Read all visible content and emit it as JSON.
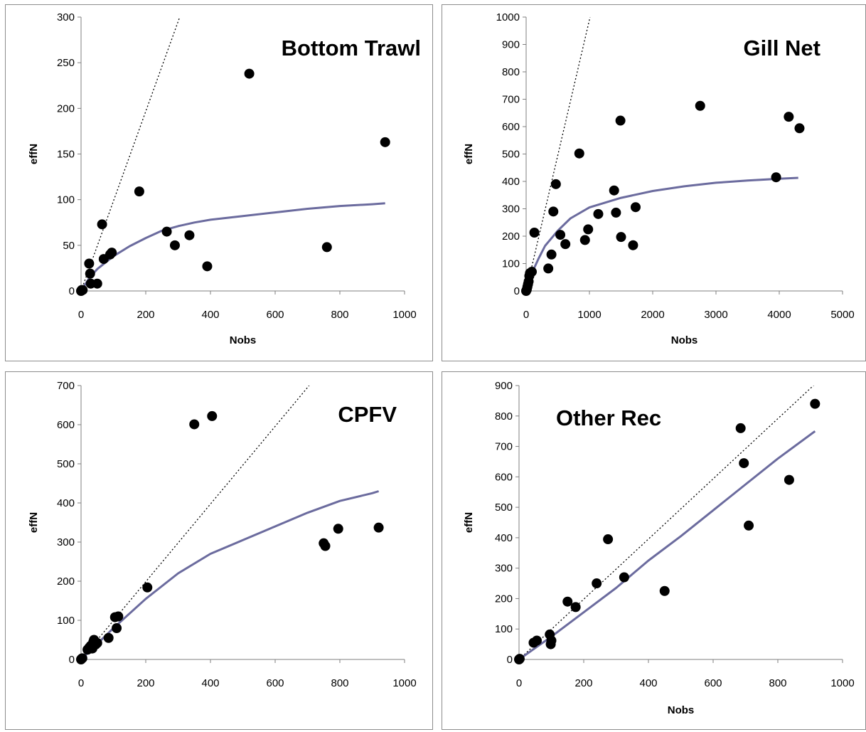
{
  "chart_data": [
    {
      "type": "scatter",
      "title": "Bottom Trawl",
      "xlabel": "Nobs",
      "ylabel": "effN",
      "xlim": [
        0,
        1000
      ],
      "ylim": [
        0,
        300
      ],
      "xticks": [
        0,
        200,
        400,
        600,
        800,
        1000
      ],
      "yticks": [
        0,
        50,
        100,
        150,
        200,
        250,
        300
      ],
      "grid": false,
      "points": [
        [
          0,
          0
        ],
        [
          2,
          1
        ],
        [
          5,
          1
        ],
        [
          25,
          30
        ],
        [
          28,
          19
        ],
        [
          30,
          8
        ],
        [
          50,
          8
        ],
        [
          65,
          73
        ],
        [
          70,
          35
        ],
        [
          90,
          40
        ],
        [
          95,
          42
        ],
        [
          180,
          109
        ],
        [
          265,
          65
        ],
        [
          290,
          50
        ],
        [
          335,
          61
        ],
        [
          390,
          27
        ],
        [
          520,
          238
        ],
        [
          760,
          48
        ],
        [
          940,
          163
        ]
      ],
      "fit_line": [
        [
          0,
          0
        ],
        [
          25,
          14
        ],
        [
          50,
          24
        ],
        [
          100,
          38
        ],
        [
          150,
          49
        ],
        [
          200,
          58
        ],
        [
          250,
          66
        ],
        [
          300,
          71
        ],
        [
          350,
          75
        ],
        [
          400,
          78
        ],
        [
          500,
          82
        ],
        [
          600,
          86
        ],
        [
          700,
          90
        ],
        [
          800,
          93
        ],
        [
          900,
          95
        ],
        [
          940,
          96
        ]
      ],
      "ref_line": [
        [
          0,
          0
        ],
        [
          305,
          300
        ]
      ],
      "colors": {
        "points": "#000000",
        "fit_line": "#6b6b9e",
        "ref_line": "#000000"
      }
    },
    {
      "type": "scatter",
      "title": "Gill Net",
      "xlabel": "Nobs",
      "ylabel": "effN",
      "xlim": [
        0,
        5000
      ],
      "ylim": [
        0,
        1000
      ],
      "xticks": [
        0,
        1000,
        2000,
        3000,
        4000,
        5000
      ],
      "yticks": [
        0,
        100,
        200,
        300,
        400,
        500,
        600,
        700,
        800,
        900,
        1000
      ],
      "grid": false,
      "points": [
        [
          0,
          0
        ],
        [
          10,
          5
        ],
        [
          20,
          15
        ],
        [
          30,
          25
        ],
        [
          40,
          35
        ],
        [
          50,
          55
        ],
        [
          60,
          65
        ],
        [
          90,
          70
        ],
        [
          130,
          213
        ],
        [
          350,
          82
        ],
        [
          400,
          133
        ],
        [
          430,
          290
        ],
        [
          470,
          390
        ],
        [
          540,
          205
        ],
        [
          620,
          171
        ],
        [
          840,
          502
        ],
        [
          930,
          186
        ],
        [
          980,
          225
        ],
        [
          1140,
          281
        ],
        [
          1390,
          367
        ],
        [
          1420,
          286
        ],
        [
          1490,
          622
        ],
        [
          1500,
          197
        ],
        [
          1690,
          167
        ],
        [
          1730,
          306
        ],
        [
          2750,
          676
        ],
        [
          3950,
          415
        ],
        [
          4150,
          636
        ],
        [
          4320,
          594
        ]
      ],
      "fit_line": [
        [
          0,
          0
        ],
        [
          100,
          70
        ],
        [
          200,
          120
        ],
        [
          300,
          165
        ],
        [
          500,
          220
        ],
        [
          700,
          265
        ],
        [
          1000,
          305
        ],
        [
          1500,
          340
        ],
        [
          2000,
          365
        ],
        [
          2500,
          382
        ],
        [
          3000,
          395
        ],
        [
          3500,
          403
        ],
        [
          4000,
          410
        ],
        [
          4300,
          413
        ]
      ],
      "ref_line": [
        [
          0,
          0
        ],
        [
          1010,
          1000
        ]
      ],
      "colors": {
        "points": "#000000",
        "fit_line": "#6b6b9e",
        "ref_line": "#000000"
      }
    },
    {
      "type": "scatter",
      "title": "CPFV",
      "xlabel": "",
      "ylabel": "effN",
      "xlim": [
        0,
        1000
      ],
      "ylim": [
        0,
        700
      ],
      "xticks": [
        0,
        200,
        400,
        600,
        800,
        1000
      ],
      "yticks": [
        0,
        100,
        200,
        300,
        400,
        500,
        600,
        700
      ],
      "grid": false,
      "points": [
        [
          0,
          0
        ],
        [
          2,
          2
        ],
        [
          4,
          3
        ],
        [
          20,
          25
        ],
        [
          25,
          30
        ],
        [
          30,
          35
        ],
        [
          35,
          28
        ],
        [
          38,
          45
        ],
        [
          40,
          50
        ],
        [
          45,
          38
        ],
        [
          50,
          42
        ],
        [
          85,
          55
        ],
        [
          105,
          108
        ],
        [
          110,
          80
        ],
        [
          115,
          110
        ],
        [
          205,
          184
        ],
        [
          350,
          601
        ],
        [
          405,
          622
        ],
        [
          750,
          297
        ],
        [
          755,
          290
        ],
        [
          795,
          334
        ],
        [
          920,
          337
        ]
      ],
      "fit_line": [
        [
          0,
          0
        ],
        [
          50,
          40
        ],
        [
          100,
          80
        ],
        [
          200,
          155
        ],
        [
          300,
          220
        ],
        [
          400,
          270
        ],
        [
          500,
          305
        ],
        [
          600,
          340
        ],
        [
          700,
          375
        ],
        [
          800,
          405
        ],
        [
          900,
          425
        ],
        [
          920,
          430
        ]
      ],
      "ref_line": [
        [
          0,
          0
        ],
        [
          705,
          700
        ]
      ],
      "colors": {
        "points": "#000000",
        "fit_line": "#6b6b9e",
        "ref_line": "#000000"
      }
    },
    {
      "type": "scatter",
      "title": "Other Rec",
      "xlabel": "Nobs",
      "ylabel": "effN",
      "xlim": [
        0,
        1000
      ],
      "ylim": [
        0,
        900
      ],
      "xticks": [
        0,
        200,
        400,
        600,
        800,
        1000
      ],
      "yticks": [
        0,
        100,
        200,
        300,
        400,
        500,
        600,
        700,
        800,
        900
      ],
      "grid": false,
      "points": [
        [
          0,
          0
        ],
        [
          2,
          2
        ],
        [
          45,
          55
        ],
        [
          55,
          62
        ],
        [
          95,
          82
        ],
        [
          98,
          50
        ],
        [
          100,
          62
        ],
        [
          150,
          190
        ],
        [
          175,
          172
        ],
        [
          240,
          250
        ],
        [
          275,
          395
        ],
        [
          325,
          270
        ],
        [
          450,
          225
        ],
        [
          685,
          760
        ],
        [
          695,
          645
        ],
        [
          710,
          440
        ],
        [
          835,
          590
        ],
        [
          915,
          840
        ]
      ],
      "fit_line": [
        [
          0,
          0
        ],
        [
          100,
          75
        ],
        [
          200,
          155
        ],
        [
          300,
          235
        ],
        [
          400,
          325
        ],
        [
          500,
          405
        ],
        [
          600,
          490
        ],
        [
          700,
          575
        ],
        [
          800,
          660
        ],
        [
          915,
          750
        ]
      ],
      "ref_line": [
        [
          0,
          0
        ],
        [
          915,
          905
        ]
      ],
      "colors": {
        "points": "#000000",
        "fit_line": "#6b6b9e",
        "ref_line": "#000000"
      }
    }
  ]
}
